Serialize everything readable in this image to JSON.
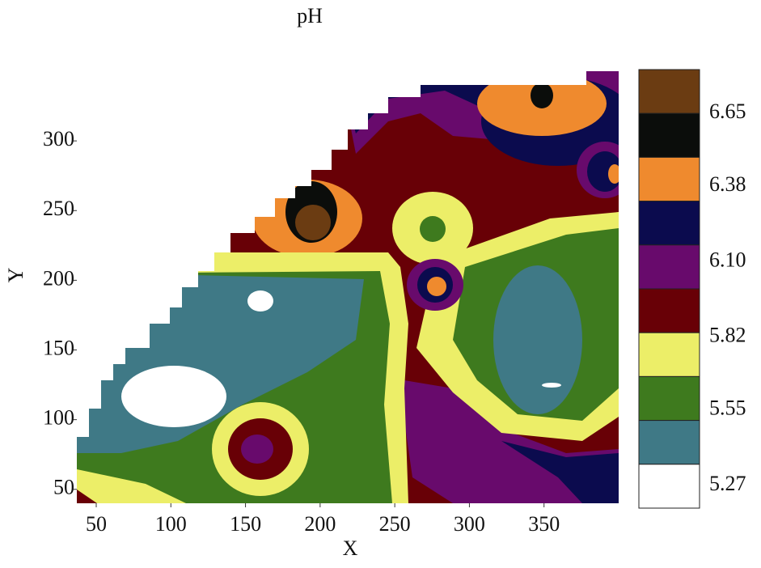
{
  "chart_data": {
    "type": "contour",
    "title": "pH",
    "x_label": "X",
    "y_label": "Y",
    "xlim": [
      37,
      400
    ],
    "xticks": [
      50,
      100,
      150,
      200,
      250,
      300,
      350
    ],
    "ylim": [
      40,
      350
    ],
    "yticks": [
      50,
      100,
      150,
      200,
      250,
      300
    ],
    "colorbar": {
      "labels": [
        6.65,
        6.38,
        6.1,
        5.82,
        5.55,
        5.27
      ],
      "colors": [
        "#6b3c12",
        "#0b0d0b",
        "#ef8a2e",
        "#0b0b4e",
        "#680a6c",
        "#680006",
        "#ecee68",
        "#3e7a1e",
        "#3f7986",
        "#ffffff"
      ]
    }
  }
}
